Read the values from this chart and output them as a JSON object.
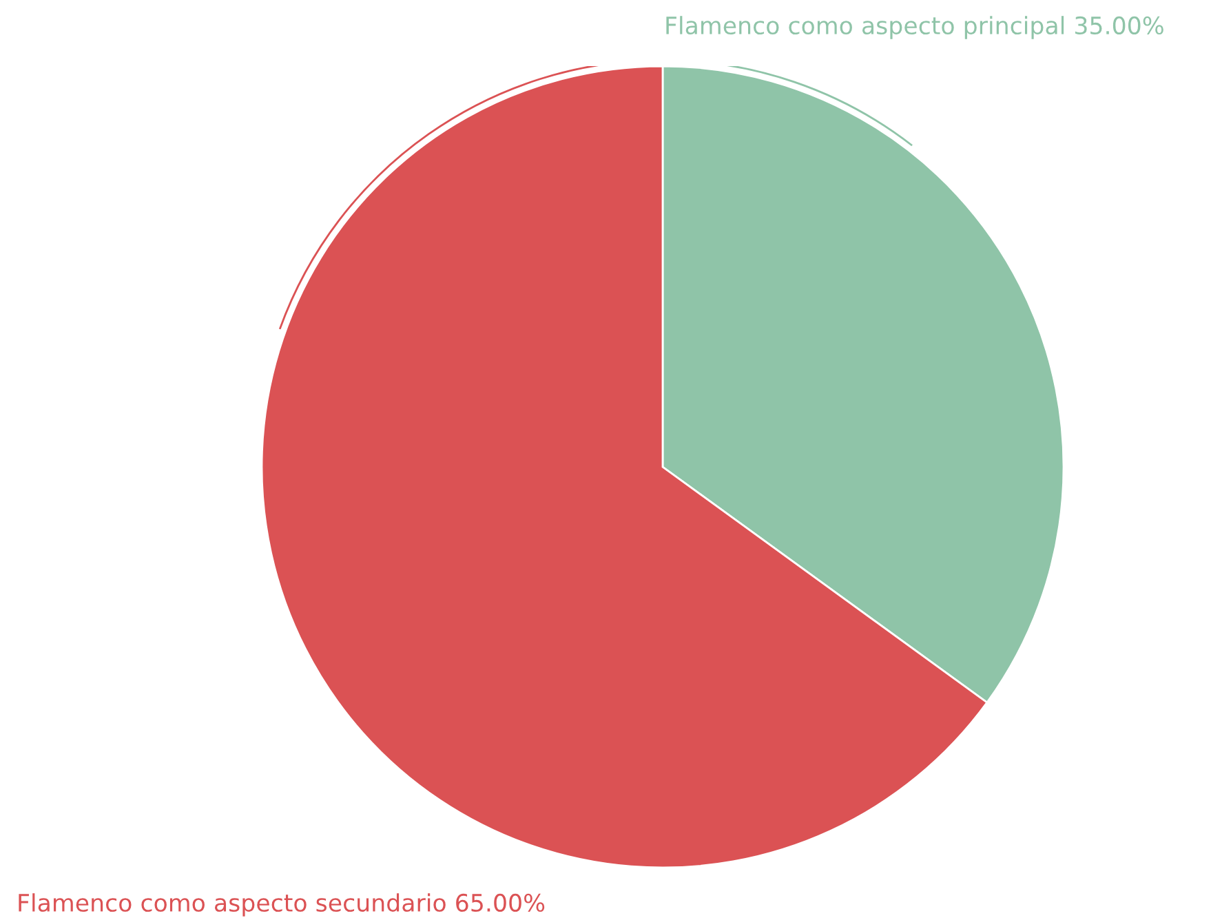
{
  "chart_data": {
    "type": "pie",
    "categories": [
      "Flamenco como aspecto principal",
      "Flamenco como aspecto secundario"
    ],
    "values": [
      35,
      65
    ],
    "colors": [
      "#8fc4a8",
      "#db5254"
    ],
    "value_labels": [
      "35.00%",
      "65.00%"
    ]
  }
}
